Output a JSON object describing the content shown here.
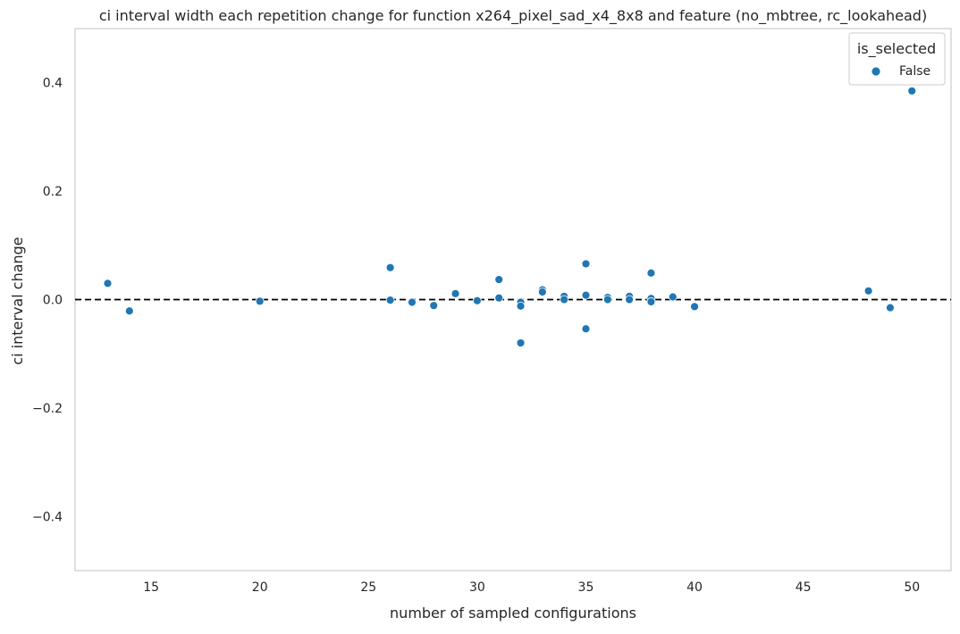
{
  "chart_data": {
    "type": "scatter",
    "title": "ci interval width each repetition change for function x264_pixel_sad_x4_8x8 and feature (no_mbtree, rc_lookahead)",
    "xlabel": "number of sampled configurations",
    "ylabel": "ci interval change",
    "xlim": [
      11.5,
      51.8
    ],
    "ylim": [
      -0.5,
      0.5
    ],
    "x_ticks": [
      15,
      20,
      25,
      30,
      35,
      40,
      45,
      50
    ],
    "x_tick_labels": [
      "15",
      "20",
      "25",
      "30",
      "35",
      "40",
      "45",
      "50"
    ],
    "y_ticks": [
      -0.4,
      -0.2,
      0.0,
      0.2,
      0.4
    ],
    "y_tick_labels": [
      "−0.4",
      "−0.2",
      "0.0",
      "0.2",
      "0.4"
    ],
    "grid": false,
    "reference_line": {
      "y": 0.0,
      "style": "dashed",
      "color": "#000000"
    },
    "legend": {
      "title": "is_selected",
      "position": "top-right",
      "entries": [
        {
          "label": "False",
          "color": "#1f77b4"
        }
      ]
    },
    "series": [
      {
        "name": "False",
        "color": "#1f77b4",
        "points": [
          {
            "x": 13,
            "y": 0.03
          },
          {
            "x": 14,
            "y": -0.021
          },
          {
            "x": 20,
            "y": -0.003
          },
          {
            "x": 26,
            "y": 0.059
          },
          {
            "x": 26,
            "y": -0.001
          },
          {
            "x": 27,
            "y": -0.005
          },
          {
            "x": 28,
            "y": -0.011
          },
          {
            "x": 29,
            "y": 0.011
          },
          {
            "x": 30,
            "y": -0.002
          },
          {
            "x": 31,
            "y": 0.037
          },
          {
            "x": 31,
            "y": 0.003
          },
          {
            "x": 32,
            "y": -0.005
          },
          {
            "x": 32,
            "y": -0.012
          },
          {
            "x": 32,
            "y": -0.08
          },
          {
            "x": 33,
            "y": 0.018
          },
          {
            "x": 33,
            "y": 0.014
          },
          {
            "x": 34,
            "y": 0.006
          },
          {
            "x": 34,
            "y": 0.0
          },
          {
            "x": 35,
            "y": 0.066
          },
          {
            "x": 35,
            "y": 0.008
          },
          {
            "x": 35,
            "y": -0.054
          },
          {
            "x": 36,
            "y": 0.004
          },
          {
            "x": 36,
            "y": 0.0
          },
          {
            "x": 37,
            "y": 0.006
          },
          {
            "x": 37,
            "y": 0.0
          },
          {
            "x": 38,
            "y": 0.049
          },
          {
            "x": 38,
            "y": 0.002
          },
          {
            "x": 38,
            "y": -0.004
          },
          {
            "x": 39,
            "y": 0.005
          },
          {
            "x": 40,
            "y": -0.013
          },
          {
            "x": 48,
            "y": 0.016
          },
          {
            "x": 49,
            "y": -0.015
          },
          {
            "x": 50,
            "y": 0.385
          }
        ]
      }
    ]
  }
}
